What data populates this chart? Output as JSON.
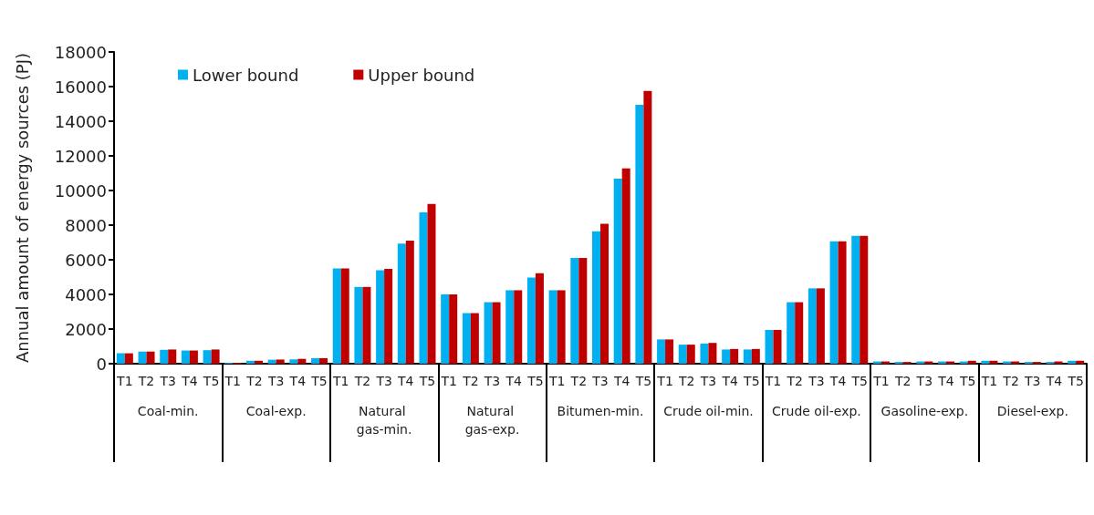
{
  "chart_data": {
    "type": "bar",
    "ylabel": "Annual amount of energy sources (PJ)",
    "categories": [
      "T1",
      "T2",
      "T3",
      "T4",
      "T5",
      "T1",
      "T2",
      "T3",
      "T4",
      "T5",
      "T1",
      "T2",
      "T3",
      "T4",
      "T5",
      "T1",
      "T2",
      "T3",
      "T4",
      "T5",
      "T1",
      "T2",
      "T3",
      "T4",
      "T5",
      "T1",
      "T2",
      "T3",
      "T4",
      "T5",
      "T1",
      "T2",
      "T3",
      "T4",
      "T5",
      "T1",
      "T2",
      "T3",
      "T4",
      "T5",
      "T1",
      "T2",
      "T3",
      "T4",
      "T5"
    ],
    "annotations": [
      "Coal-min.",
      "Coal-exp.",
      "Natural gas-min.",
      "Natural gas-exp.",
      "Bitumen-min.",
      "Crude oil-min.",
      "Crude oil-exp.",
      "Gasoline-exp.",
      "Diesel-exp."
    ],
    "series": [
      {
        "name": "Lower bound",
        "color": "#00b0f0",
        "values": [
          600,
          700,
          800,
          760,
          780,
          50,
          170,
          230,
          250,
          320,
          5500,
          4430,
          5400,
          6930,
          8740,
          4000,
          2920,
          3550,
          4240,
          4980,
          4240,
          6100,
          7650,
          10680,
          14950,
          1400,
          1100,
          1160,
          820,
          820,
          1950,
          3550,
          4350,
          7070,
          7380,
          130,
          100,
          130,
          130,
          130,
          170,
          130,
          100,
          100,
          170
        ]
      },
      {
        "name": "Upper bound",
        "color": "#c00000",
        "values": [
          600,
          700,
          820,
          760,
          820,
          50,
          170,
          240,
          280,
          320,
          5500,
          4430,
          5480,
          7100,
          9220,
          4000,
          2920,
          3550,
          4240,
          5220,
          4240,
          6100,
          8080,
          11280,
          15750,
          1400,
          1100,
          1200,
          850,
          850,
          1950,
          3550,
          4350,
          7070,
          7380,
          130,
          100,
          130,
          130,
          170,
          170,
          130,
          100,
          130,
          170
        ]
      }
    ],
    "ylim": [
      0,
      18000
    ],
    "yticks": [
      0,
      2000,
      4000,
      6000,
      8000,
      10000,
      12000,
      14000,
      16000,
      18000
    ],
    "grid": false,
    "legend": "top left"
  }
}
